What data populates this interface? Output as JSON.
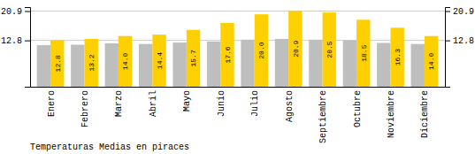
{
  "chart_data": {
    "type": "bar",
    "title": "Temperaturas Medias en piraces",
    "categories": [
      "Enero",
      "Febrero",
      "Marzo",
      "Abril",
      "Mayo",
      "Junio",
      "Julio",
      "Agosto",
      "Septiembre",
      "Octubre",
      "Noviembre",
      "Diciembre"
    ],
    "series": [
      {
        "color": "#BEBEBE",
        "values": [
          11.5,
          11.6,
          12.0,
          11.8,
          12.2,
          12.5,
          13.0,
          13.2,
          13.0,
          12.8,
          12.1,
          11.8
        ]
      },
      {
        "color": "#FFD000",
        "values": [
          12.8,
          13.2,
          14.0,
          14.4,
          15.7,
          17.6,
          20.0,
          20.9,
          20.5,
          18.5,
          16.3,
          14.0
        ],
        "data_labels": true,
        "value_labels": [
          "12.8",
          "13.2",
          "14.0",
          "14.4",
          "15.7",
          "17.6",
          "20.0",
          "20.9",
          "20.5",
          "18.5",
          "16.3",
          "14.0"
        ]
      }
    ],
    "ylim": [
      0,
      22.0
    ],
    "yticks": [
      12.8,
      20.9
    ],
    "y2lim": [
      0,
      22.0
    ],
    "y2ticks": [
      12.8,
      20.9
    ],
    "grid": true
  }
}
